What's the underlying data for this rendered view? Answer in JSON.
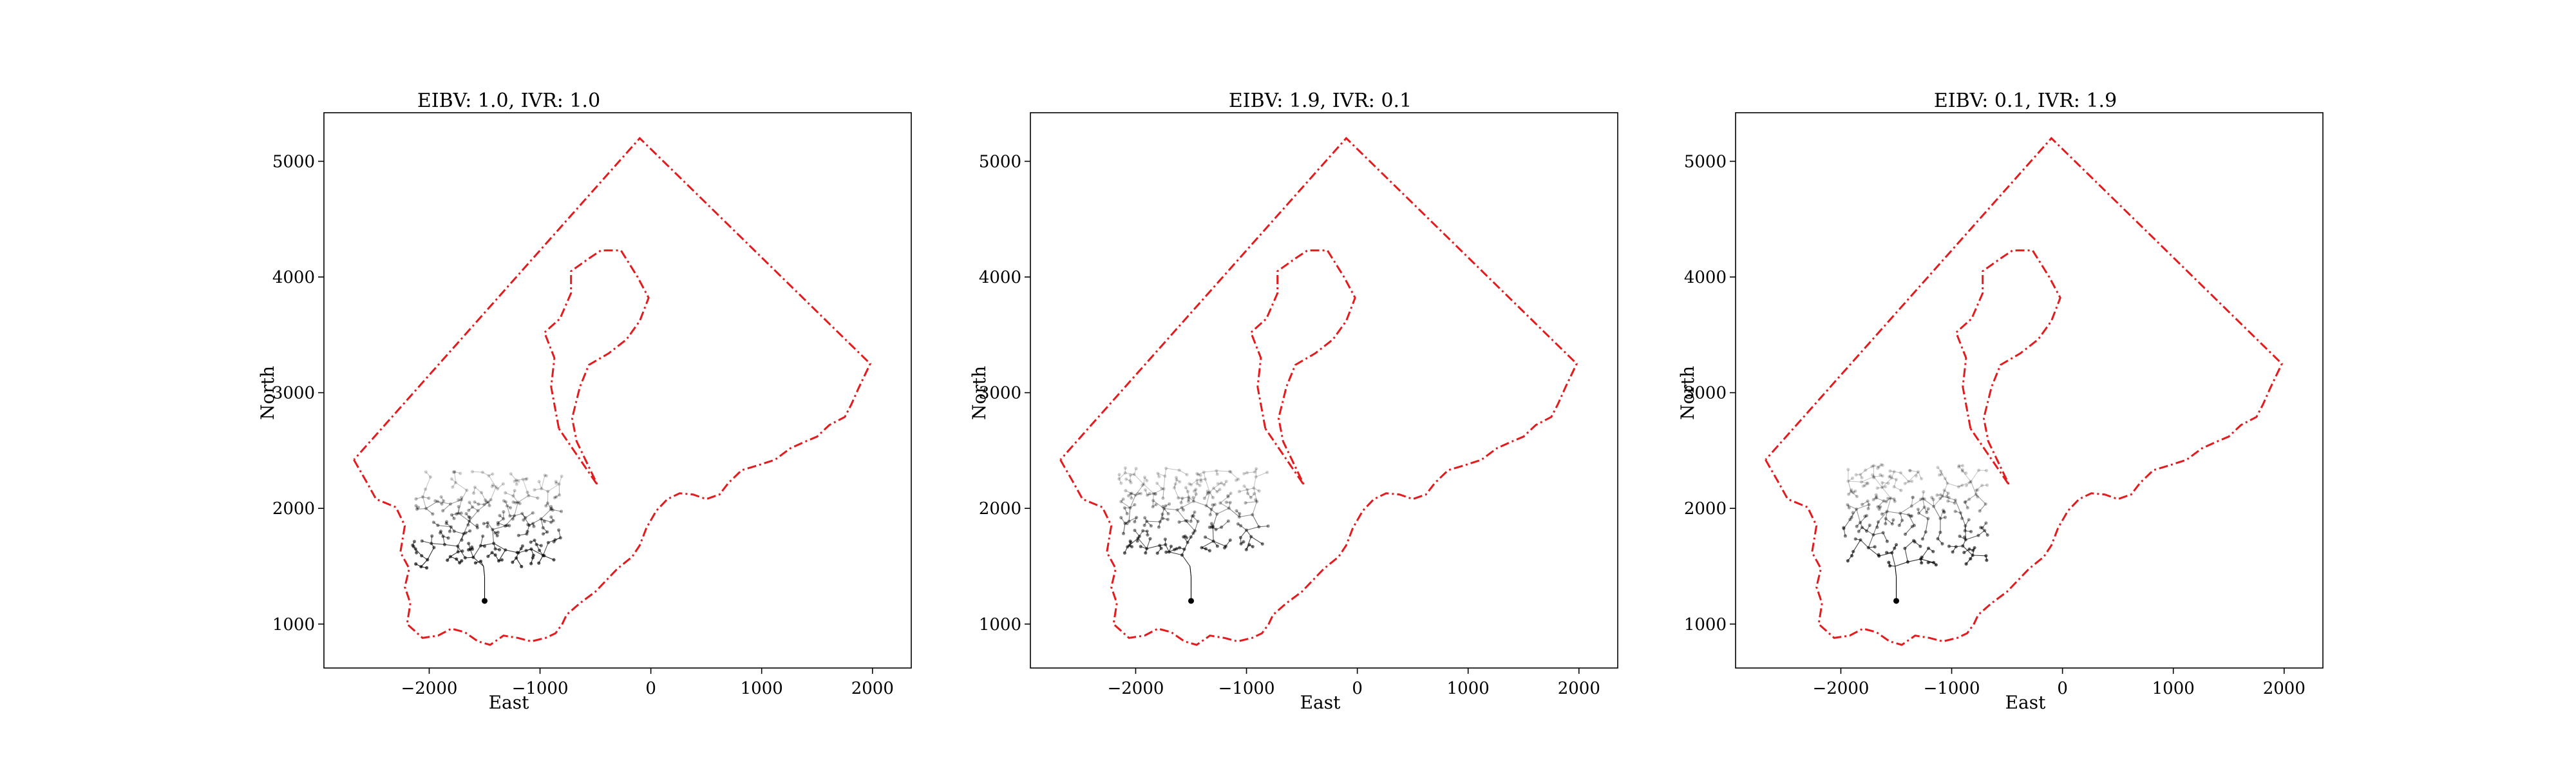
{
  "colors": {
    "boundary": "#e41a1c",
    "tree": "#000000",
    "axes": "#000000",
    "background": "#ffffff"
  },
  "chart_data": [
    {
      "type": "scatter",
      "title": "EIBV: 1.0, IVR: 1.0",
      "xlabel": "East",
      "ylabel": "North",
      "xlim": [
        -2950,
        2350
      ],
      "ylim": [
        620,
        5420
      ],
      "xticks": [
        -2000,
        -1000,
        0,
        1000,
        2000
      ],
      "xtick_labels": [
        "−2000",
        "−1000",
        "0",
        "1000",
        "2000"
      ],
      "yticks": [
        1000,
        2000,
        3000,
        4000,
        5000
      ],
      "ytick_labels": [
        "1000",
        "2000",
        "3000",
        "4000",
        "5000"
      ],
      "tree": {
        "root": [
          -1500,
          1200
        ],
        "spread_x": [
          -2150,
          -800
        ],
        "spread_y": [
          1480,
          2320
        ],
        "seed": 11
      }
    },
    {
      "type": "scatter",
      "title": "EIBV: 1.9, IVR: 0.1",
      "xlabel": "East",
      "ylabel": "North",
      "xlim": [
        -2950,
        2350
      ],
      "ylim": [
        620,
        5420
      ],
      "xticks": [
        -2000,
        -1000,
        0,
        1000,
        2000
      ],
      "xtick_labels": [
        "−2000",
        "−1000",
        "0",
        "1000",
        "2000"
      ],
      "yticks": [
        1000,
        2000,
        3000,
        4000,
        5000
      ],
      "ytick_labels": [
        "1000",
        "2000",
        "3000",
        "4000",
        "5000"
      ],
      "tree": {
        "root": [
          -1500,
          1200
        ],
        "spread_x": [
          -2150,
          -800
        ],
        "spread_y": [
          1600,
          2350
        ],
        "seed": 23
      }
    },
    {
      "type": "scatter",
      "title": "EIBV: 0.1, IVR: 1.9",
      "xlabel": "East",
      "ylabel": "North",
      "xlim": [
        -2950,
        2350
      ],
      "ylim": [
        620,
        5420
      ],
      "xticks": [
        -2000,
        -1000,
        0,
        1000,
        2000
      ],
      "xtick_labels": [
        "−2000",
        "−1000",
        "0",
        "1000",
        "2000"
      ],
      "yticks": [
        1000,
        2000,
        3000,
        4000,
        5000
      ],
      "ytick_labels": [
        "1000",
        "2000",
        "3000",
        "4000",
        "5000"
      ],
      "tree": {
        "root": [
          -1500,
          1200
        ],
        "spread_x": [
          -2000,
          -650
        ],
        "spread_y": [
          1500,
          2380
        ],
        "seed": 37
      }
    }
  ],
  "boundary_outer": [
    [
      -2680,
      2420
    ],
    [
      -2560,
      2220
    ],
    [
      -2480,
      2080
    ],
    [
      -2300,
      2010
    ],
    [
      -2220,
      1850
    ],
    [
      -2260,
      1620
    ],
    [
      -2180,
      1480
    ],
    [
      -2220,
      1320
    ],
    [
      -2170,
      1180
    ],
    [
      -2200,
      1000
    ],
    [
      -2060,
      880
    ],
    [
      -1920,
      900
    ],
    [
      -1800,
      960
    ],
    [
      -1680,
      930
    ],
    [
      -1560,
      850
    ],
    [
      -1450,
      820
    ],
    [
      -1330,
      900
    ],
    [
      -1200,
      880
    ],
    [
      -1080,
      850
    ],
    [
      -950,
      880
    ],
    [
      -860,
      920
    ],
    [
      -800,
      1000
    ],
    [
      -760,
      1080
    ],
    [
      -640,
      1180
    ],
    [
      -500,
      1280
    ],
    [
      -400,
      1380
    ],
    [
      -300,
      1480
    ],
    [
      -170,
      1580
    ],
    [
      -100,
      1680
    ],
    [
      -40,
      1830
    ],
    [
      50,
      1980
    ],
    [
      150,
      2080
    ],
    [
      260,
      2130
    ],
    [
      380,
      2120
    ],
    [
      500,
      2080
    ],
    [
      620,
      2120
    ],
    [
      700,
      2220
    ],
    [
      820,
      2330
    ],
    [
      960,
      2370
    ],
    [
      1120,
      2420
    ],
    [
      1260,
      2520
    ],
    [
      1400,
      2580
    ],
    [
      1500,
      2620
    ],
    [
      1610,
      2720
    ],
    [
      1750,
      2790
    ],
    [
      1810,
      2900
    ],
    [
      1880,
      3050
    ],
    [
      1980,
      3250
    ],
    [
      -100,
      5200
    ],
    [
      -2680,
      2420
    ]
  ],
  "boundary_inner": [
    [
      -830,
      2690
    ],
    [
      -900,
      3050
    ],
    [
      -870,
      3300
    ],
    [
      -960,
      3520
    ],
    [
      -820,
      3640
    ],
    [
      -720,
      3860
    ],
    [
      -720,
      4050
    ],
    [
      -560,
      4160
    ],
    [
      -450,
      4230
    ],
    [
      -270,
      4230
    ],
    [
      -120,
      4000
    ],
    [
      -20,
      3820
    ],
    [
      -100,
      3620
    ],
    [
      -220,
      3460
    ],
    [
      -380,
      3340
    ],
    [
      -560,
      3240
    ],
    [
      -640,
      3050
    ],
    [
      -710,
      2780
    ],
    [
      -670,
      2580
    ],
    [
      -480,
      2200
    ],
    [
      -830,
      2690
    ]
  ]
}
